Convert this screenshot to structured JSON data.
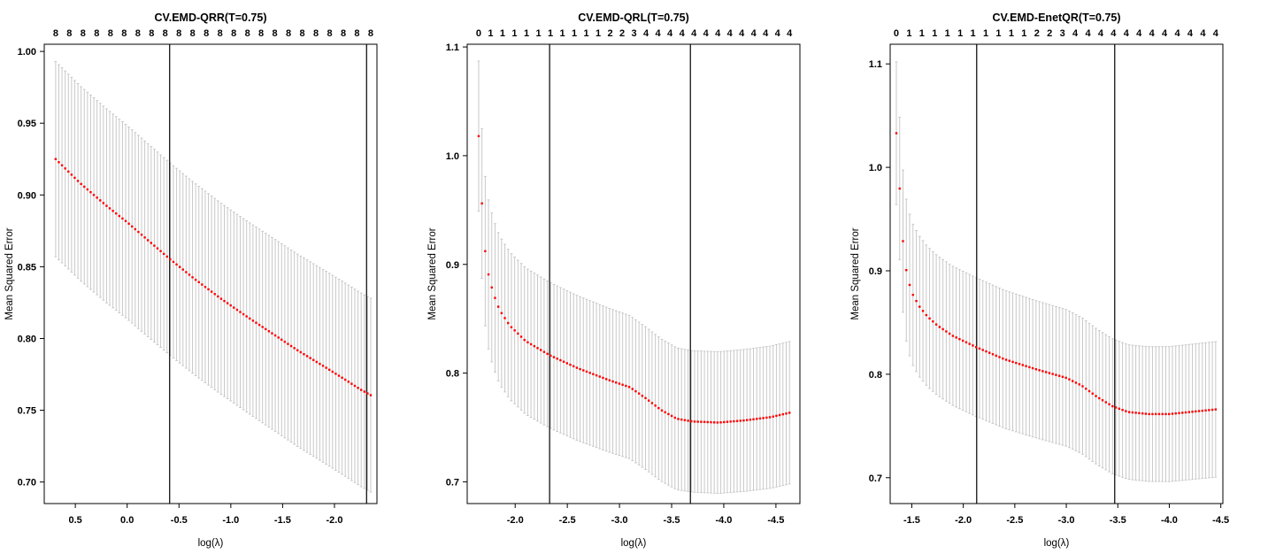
{
  "figure": {
    "background": "#ffffff",
    "point_color": "#ff0000",
    "errorbar_color": "#c8c8c8",
    "axis_color": "#000000",
    "text_color": "#000000"
  },
  "chart_data": [
    {
      "type": "scatter",
      "title": "CV.EMD-QRR(T=0.75)",
      "xlabel": "log(λ)",
      "ylabel": "Mean Squared Error",
      "top_axis_labels": [
        "8",
        "8",
        "8",
        "8",
        "8",
        "8",
        "8",
        "8",
        "8",
        "8",
        "8",
        "8",
        "8",
        "8",
        "8",
        "8",
        "8",
        "8",
        "8",
        "8",
        "8",
        "8",
        "8",
        "8"
      ],
      "x_tick_values": [
        0.5,
        0.0,
        -0.5,
        -1.0,
        -1.5,
        -2.0
      ],
      "x_tick_labels": [
        "0.5",
        "0.0",
        "-0.5",
        "-1.0",
        "-1.5",
        "-2.0"
      ],
      "y_tick_values": [
        1.0,
        0.95,
        0.9,
        0.85,
        0.8,
        0.75,
        0.7
      ],
      "y_tick_labels": [
        "1.00",
        "0.95",
        "0.90",
        "0.85",
        "0.80",
        "0.75",
        "0.70"
      ],
      "xlim": [
        0.8,
        -2.41
      ],
      "ylim": [
        0.685,
        1.005
      ],
      "grid": false,
      "vlines": [
        -0.41,
        -2.31
      ],
      "n_points": 100,
      "x_start": 0.69,
      "x_end": -2.35,
      "curve_anchors": [
        [
          0.69,
          0.925
        ],
        [
          0.45,
          0.908
        ],
        [
          0.2,
          0.8925
        ],
        [
          0.0,
          0.881
        ],
        [
          -0.2,
          0.8685
        ],
        [
          -0.41,
          0.8555
        ],
        [
          -0.65,
          0.8415
        ],
        [
          -0.9,
          0.828
        ],
        [
          -1.15,
          0.8155
        ],
        [
          -1.4,
          0.8035
        ],
        [
          -1.65,
          0.7915
        ],
        [
          -1.9,
          0.7805
        ],
        [
          -2.1,
          0.7715
        ],
        [
          -2.25,
          0.7645
        ],
        [
          -2.35,
          0.7605
        ]
      ],
      "errorbar_halfwidth_anchors": [
        [
          0.69,
          0.068
        ],
        [
          -1.0,
          0.0665
        ],
        [
          -2.35,
          0.0675
        ]
      ]
    },
    {
      "type": "scatter",
      "title": "CV.EMD-QRL(T=0.75)",
      "xlabel": "log(λ)",
      "ylabel": "Mean Squared Error",
      "top_axis_labels": [
        "0",
        "1",
        "1",
        "1",
        "1",
        "1",
        "1",
        "1",
        "1",
        "1",
        "1",
        "2",
        "2",
        "3",
        "4",
        "4",
        "4",
        "4",
        "4",
        "4",
        "4",
        "4",
        "4",
        "4",
        "4",
        "4",
        "4"
      ],
      "x_tick_values": [
        -2.0,
        -2.5,
        -3.0,
        -3.5,
        -4.0,
        -4.5
      ],
      "x_tick_labels": [
        "-2.0",
        "-2.5",
        "-3.0",
        "-3.5",
        "-4.0",
        "-4.5"
      ],
      "y_tick_values": [
        1.1,
        1.0,
        0.9,
        0.8,
        0.7
      ],
      "y_tick_labels": [
        "1.1",
        "1.0",
        "0.9",
        "0.8",
        "0.7"
      ],
      "xlim": [
        -1.54,
        -4.73
      ],
      "ylim": [
        0.68,
        1.1025
      ],
      "grid": false,
      "vlines": [
        -2.33,
        -3.68
      ],
      "n_points": 96,
      "x_start": -1.65,
      "x_end": -4.63,
      "curve_anchors": [
        [
          -1.65,
          1.018
        ],
        [
          -1.68,
          0.958
        ],
        [
          -1.72,
          0.902
        ],
        [
          -1.75,
          0.888
        ],
        [
          -1.79,
          0.8735
        ],
        [
          -1.85,
          0.858
        ],
        [
          -1.95,
          0.8435
        ],
        [
          -2.1,
          0.8295
        ],
        [
          -2.33,
          0.8165
        ],
        [
          -2.6,
          0.8045
        ],
        [
          -2.9,
          0.7935
        ],
        [
          -3.1,
          0.787
        ],
        [
          -3.25,
          0.777
        ],
        [
          -3.4,
          0.766
        ],
        [
          -3.55,
          0.758
        ],
        [
          -3.7,
          0.7555
        ],
        [
          -3.95,
          0.7545
        ],
        [
          -4.2,
          0.7565
        ],
        [
          -4.45,
          0.7595
        ],
        [
          -4.63,
          0.7635
        ]
      ],
      "errorbar_halfwidth_anchors": [
        [
          -1.65,
          0.069
        ],
        [
          -2.0,
          0.0675
        ],
        [
          -3.0,
          0.066
        ],
        [
          -3.7,
          0.065
        ],
        [
          -4.63,
          0.0655
        ]
      ]
    },
    {
      "type": "scatter",
      "title": "CV.EMD-EnetQR(T=0.75)",
      "xlabel": "log(λ)",
      "ylabel": "Mean Squared Error",
      "top_axis_labels": [
        "0",
        "1",
        "1",
        "1",
        "1",
        "1",
        "1",
        "1",
        "1",
        "1",
        "1",
        "2",
        "2",
        "3",
        "4",
        "4",
        "4",
        "4",
        "4",
        "4",
        "4",
        "4",
        "4",
        "4",
        "4",
        "4"
      ],
      "x_tick_values": [
        -1.5,
        -2.0,
        -2.5,
        -3.0,
        -3.5,
        -4.0,
        -4.5
      ],
      "x_tick_labels": [
        "-1.5",
        "-2.0",
        "-2.5",
        "-3.0",
        "-3.5",
        "-4.0",
        "-4.5"
      ],
      "y_tick_values": [
        1.1,
        1.0,
        0.9,
        0.8,
        0.7
      ],
      "y_tick_labels": [
        "1.1",
        "1.0",
        "0.9",
        "0.8",
        "0.7"
      ],
      "xlim": [
        -1.29,
        -4.52
      ],
      "ylim": [
        0.675,
        1.119
      ],
      "grid": false,
      "vlines": [
        -2.13,
        -3.47
      ],
      "n_points": 97,
      "x_start": -1.35,
      "x_end": -4.45,
      "curve_anchors": [
        [
          -1.35,
          1.033
        ],
        [
          -1.385,
          0.975
        ],
        [
          -1.415,
          0.928
        ],
        [
          -1.45,
          0.898
        ],
        [
          -1.48,
          0.886
        ],
        [
          -1.51,
          0.877
        ],
        [
          -1.57,
          0.866
        ],
        [
          -1.65,
          0.856
        ],
        [
          -1.75,
          0.847
        ],
        [
          -1.9,
          0.837
        ],
        [
          -2.13,
          0.826
        ],
        [
          -2.4,
          0.8145
        ],
        [
          -2.7,
          0.805
        ],
        [
          -3.0,
          0.7965
        ],
        [
          -3.15,
          0.789
        ],
        [
          -3.3,
          0.778
        ],
        [
          -3.45,
          0.769
        ],
        [
          -3.6,
          0.7635
        ],
        [
          -3.8,
          0.7615
        ],
        [
          -4.0,
          0.7615
        ],
        [
          -4.2,
          0.7635
        ],
        [
          -4.45,
          0.766
        ]
      ],
      "errorbar_halfwidth_anchors": [
        [
          -1.35,
          0.069
        ],
        [
          -1.7,
          0.0675
        ],
        [
          -3.0,
          0.066
        ],
        [
          -3.6,
          0.065
        ],
        [
          -4.45,
          0.0655
        ]
      ]
    }
  ]
}
